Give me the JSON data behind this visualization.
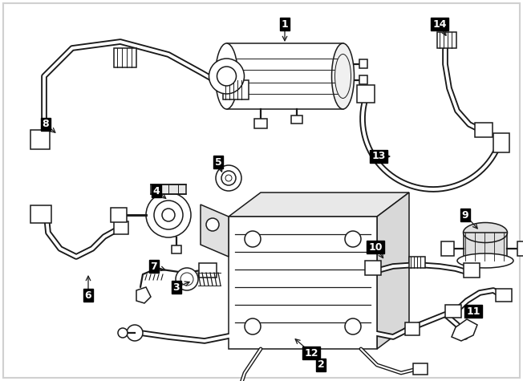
{
  "bg_color": "#ffffff",
  "line_color": "#1a1a1a",
  "label_bg": "#000000",
  "label_fg": "#ffffff",
  "fig_width": 6.52,
  "fig_height": 4.75,
  "dpi": 100,
  "border_color": "#d0d0d0",
  "thin_lw": 0.7,
  "med_lw": 1.1,
  "thick_lw": 1.6
}
